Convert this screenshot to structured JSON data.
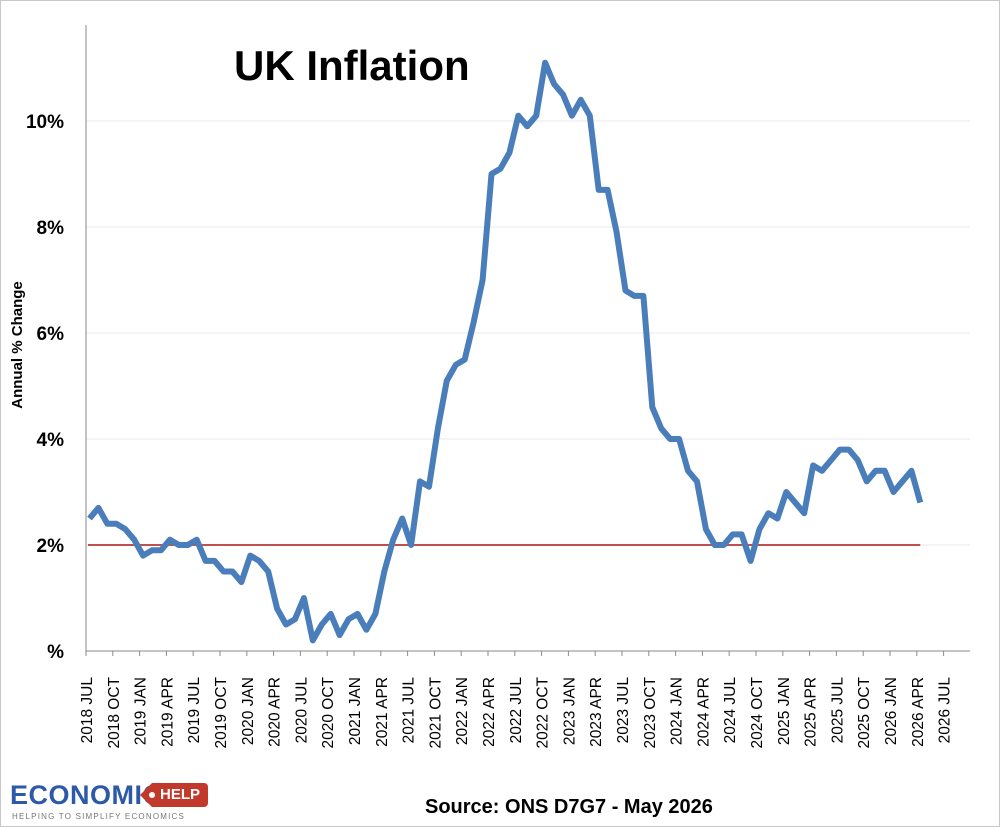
{
  "chart_data": {
    "type": "line",
    "title": "UK Inflation",
    "ylabel": "Annual % Change",
    "xlabel": "",
    "ylim": [
      0,
      11.8
    ],
    "yticks": [
      0,
      2,
      4,
      6,
      8,
      10
    ],
    "ytick_labels": [
      "%",
      "2%",
      "4%",
      "6%",
      "8%",
      "10%"
    ],
    "xticks": [
      "2018 JUL",
      "2018 OCT",
      "2019 JAN",
      "2019 APR",
      "2019 JUL",
      "2019 OCT",
      "2020 JAN",
      "2020 APR",
      "2020 JUL",
      "2020 OCT",
      "2021 JAN",
      "2021 APR",
      "2021 JUL",
      "2021 OCT",
      "2022 JAN",
      "2022 APR",
      "2022 JUL",
      "2022 OCT",
      "2023 JAN",
      "2023 APR",
      "2023 JUL",
      "2023 OCT",
      "2024 JAN",
      "2024 APR",
      "2024 JUL",
      "2024 OCT",
      "2025 JAN",
      "2025 APR",
      "2025 JUL",
      "2025 OCT",
      "2026 JAN",
      "2026 APR",
      "2026 JUL"
    ],
    "x_start": "2018 JUL",
    "x_end": "2026 APR",
    "grid": "horizontal",
    "legend": "none",
    "series": [
      {
        "color": "#4a7ebb",
        "values": [
          2.5,
          2.7,
          2.4,
          2.4,
          2.3,
          2.1,
          1.8,
          1.9,
          1.9,
          2.1,
          2.0,
          2.0,
          2.1,
          1.7,
          1.7,
          1.5,
          1.5,
          1.3,
          1.8,
          1.7,
          1.5,
          0.8,
          0.5,
          0.6,
          1.0,
          0.2,
          0.5,
          0.7,
          0.3,
          0.6,
          0.7,
          0.4,
          0.7,
          1.5,
          2.1,
          2.5,
          2.0,
          3.2,
          3.1,
          4.2,
          5.1,
          5.4,
          5.5,
          6.2,
          7.0,
          9.0,
          9.1,
          9.4,
          10.1,
          9.9,
          10.1,
          11.1,
          10.7,
          10.5,
          10.1,
          10.4,
          10.1,
          8.7,
          8.7,
          7.9,
          6.8,
          6.7,
          6.7,
          4.6,
          4.2,
          4.0,
          4.0,
          3.4,
          3.2,
          2.3,
          2.0,
          2.0,
          2.2,
          2.2,
          1.7,
          2.3,
          2.6,
          2.5,
          3.0,
          2.8,
          2.6,
          3.5,
          3.4,
          3.6,
          3.8,
          3.8,
          3.6,
          3.2,
          3.4,
          3.4,
          3.0,
          3.2,
          3.4,
          2.8
        ]
      }
    ],
    "reference_line": {
      "value": 2,
      "color": "#c0504d"
    }
  },
  "footer": {
    "source": "Source: ONS D7G7 - May 2026"
  },
  "logo": {
    "word": "ECONOMICS",
    "tag": "HELP",
    "tagline": "HELPING TO SIMPLIFY ECONOMICS"
  }
}
